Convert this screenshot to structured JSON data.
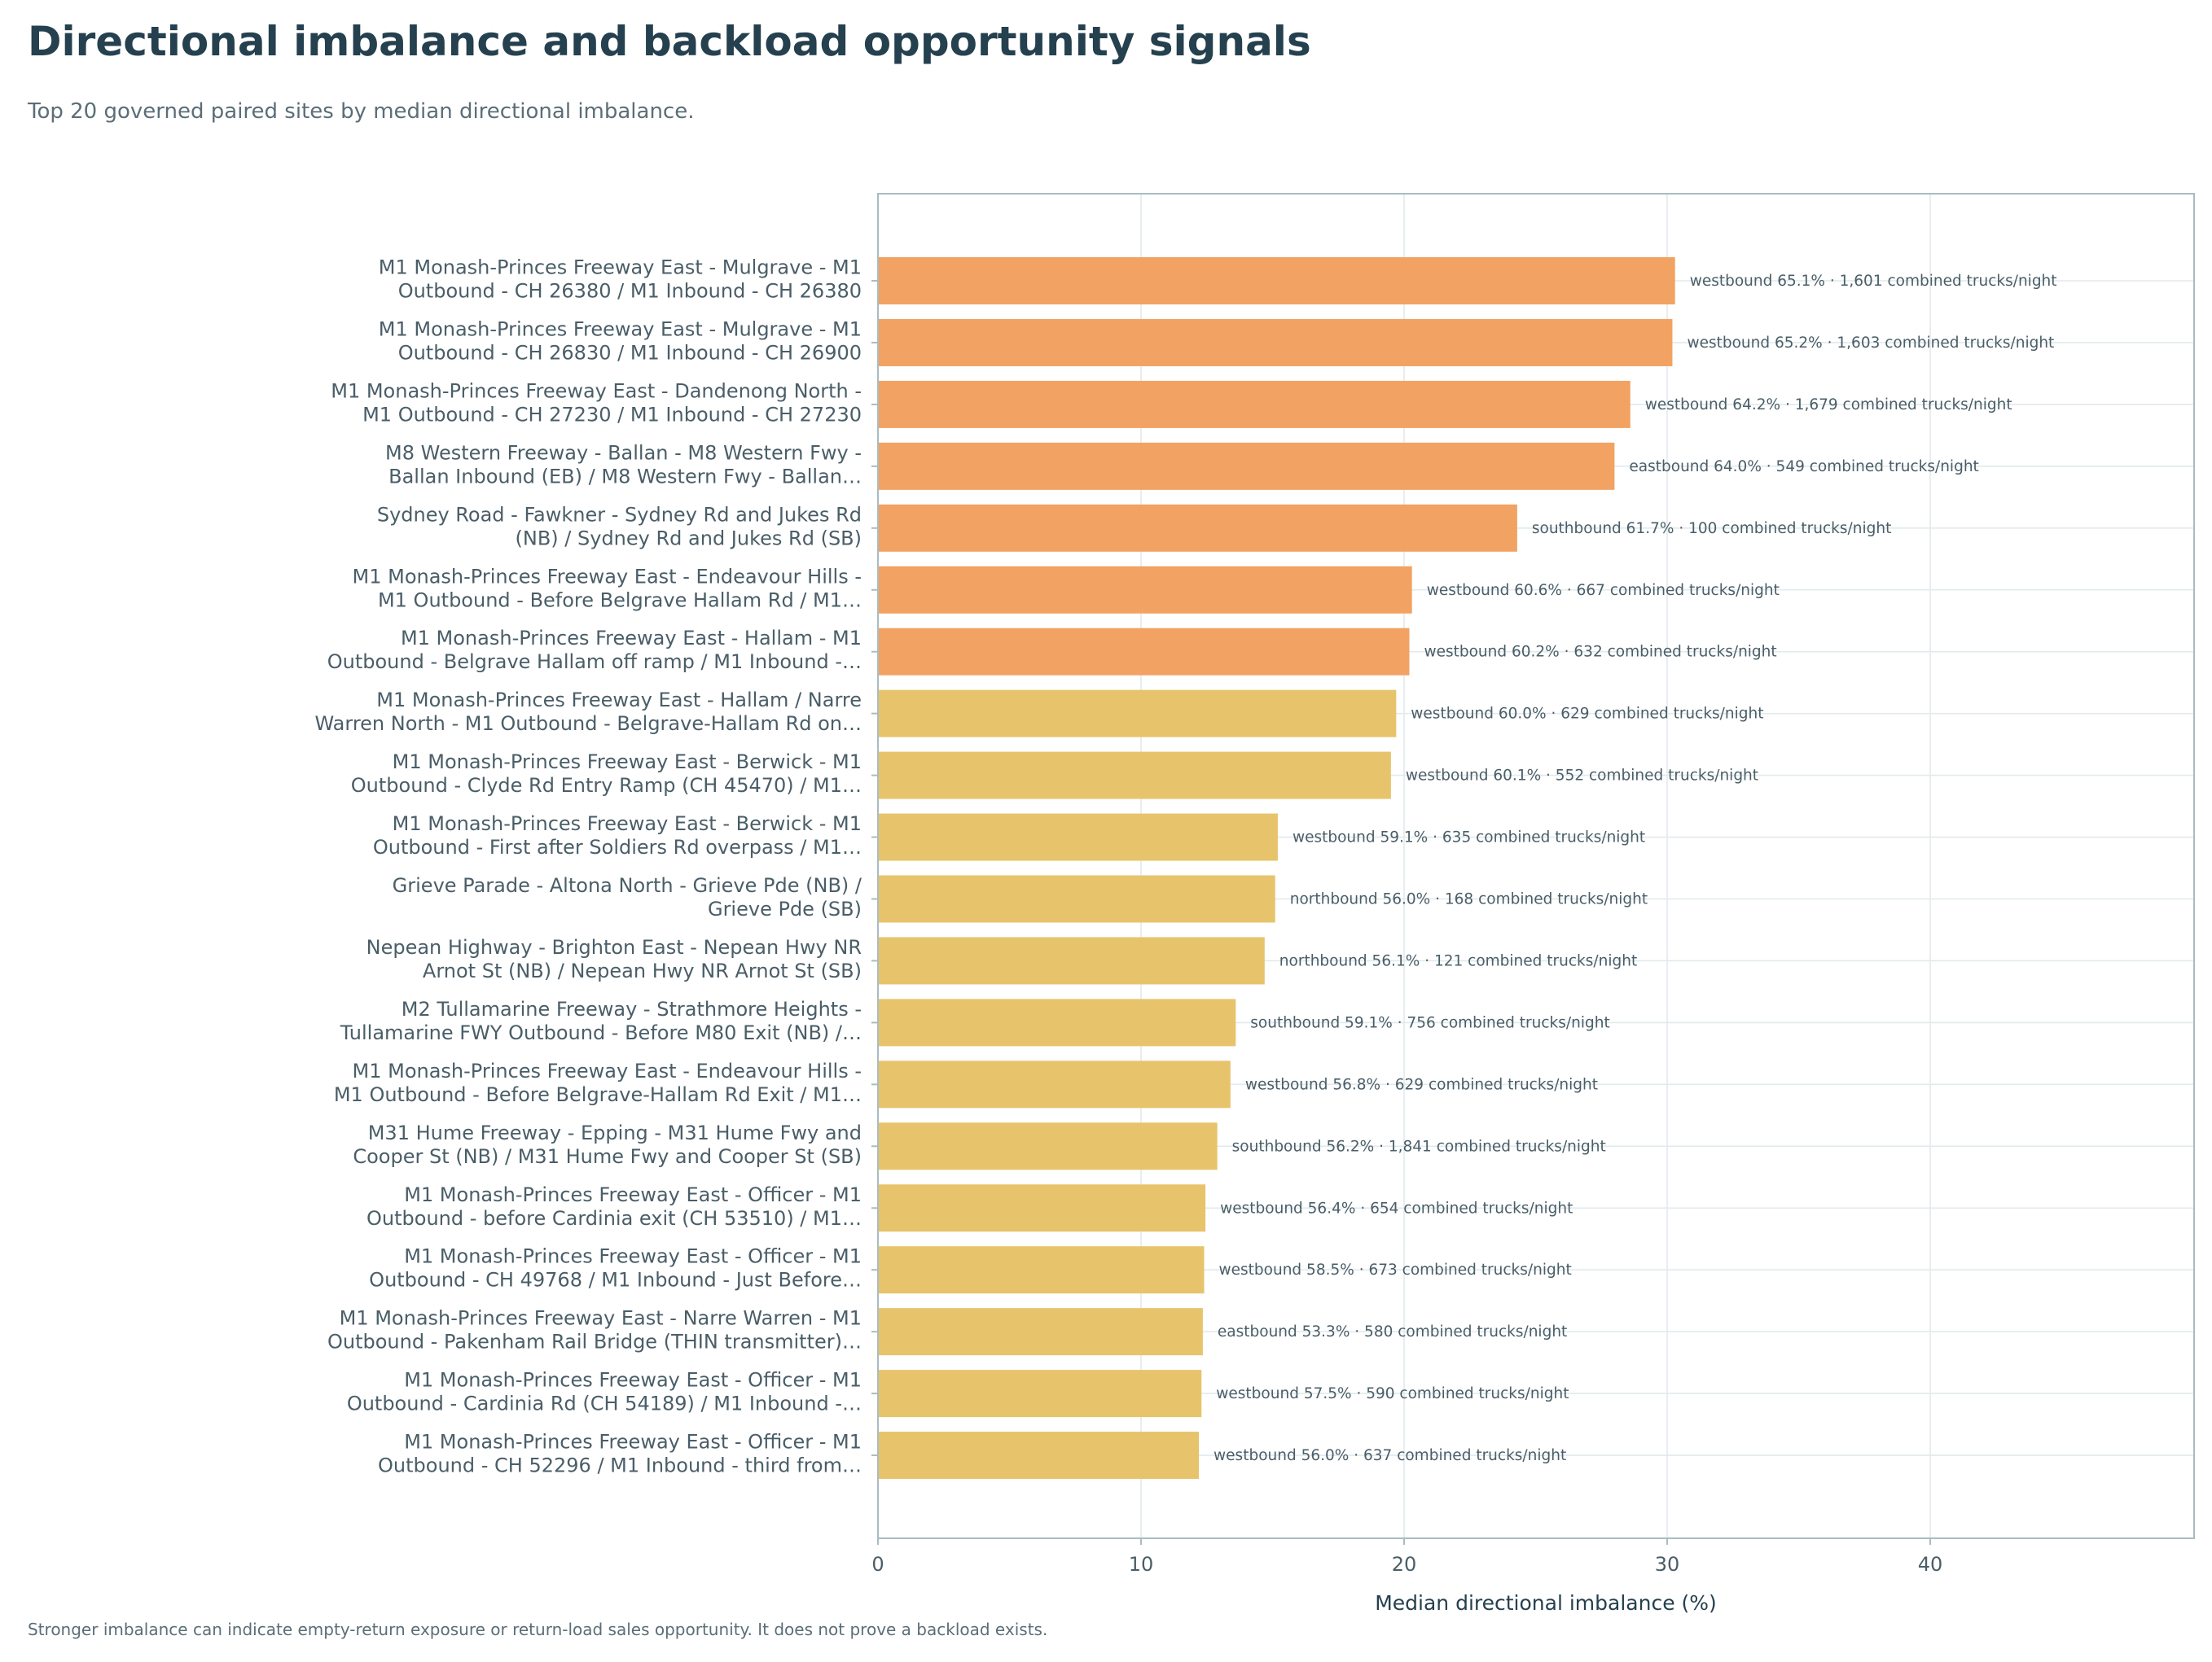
{
  "title": "Directional imbalance and backload opportunity signals",
  "subtitle": "Top 20 governed paired sites by median directional imbalance.",
  "footnote": "Stronger imbalance can indicate empty-return exposure or return-load sales opportunity. It does not prove a backload exists.",
  "colors": {
    "high": "#f2a262",
    "mid": "#e7c46b",
    "frame": "#a9bcc2",
    "grid": "#e2eaec",
    "text": "#4a5e68",
    "title": "#25404e"
  },
  "chart_data": {
    "type": "bar",
    "orientation": "horizontal",
    "xlabel": "Median directional imbalance (%)",
    "xlim": [
      0,
      50
    ],
    "xticks": [
      0,
      10,
      20,
      30,
      40
    ],
    "grid": true,
    "bars": [
      {
        "label": [
          "M1 Monash-Princes Freeway East - Mulgrave - M1",
          "Outbound - CH 26380 / M1 Inbound - CH 26380"
        ],
        "value": 30.3,
        "annotation": "westbound 65.1% · 1,601 combined trucks/night",
        "color_group": "high"
      },
      {
        "label": [
          "M1 Monash-Princes Freeway East - Mulgrave - M1",
          "Outbound - CH 26830 / M1 Inbound - CH 26900"
        ],
        "value": 30.2,
        "annotation": "westbound 65.2% · 1,603 combined trucks/night",
        "color_group": "high"
      },
      {
        "label": [
          "M1 Monash-Princes Freeway East - Dandenong North -",
          "M1 Outbound - CH 27230 / M1 Inbound - CH 27230"
        ],
        "value": 28.6,
        "annotation": "westbound 64.2% · 1,679 combined trucks/night",
        "color_group": "high"
      },
      {
        "label": [
          "M8 Western Freeway - Ballan - M8 Western Fwy -",
          "Ballan Inbound (EB) / M8 Western Fwy - Ballan…"
        ],
        "value": 28.0,
        "annotation": "eastbound 64.0% · 549 combined trucks/night",
        "color_group": "high"
      },
      {
        "label": [
          "Sydney Road - Fawkner - Sydney Rd and Jukes Rd",
          "(NB) / Sydney Rd and Jukes Rd (SB)"
        ],
        "value": 24.3,
        "annotation": "southbound 61.7% · 100 combined trucks/night",
        "color_group": "high"
      },
      {
        "label": [
          "M1 Monash-Princes Freeway East - Endeavour Hills -",
          "M1 Outbound - Before Belgrave Hallam Rd / M1…"
        ],
        "value": 20.3,
        "annotation": "westbound 60.6% · 667 combined trucks/night",
        "color_group": "high"
      },
      {
        "label": [
          "M1 Monash-Princes Freeway East - Hallam - M1",
          "Outbound - Belgrave Hallam off ramp / M1 Inbound -…"
        ],
        "value": 20.2,
        "annotation": "westbound 60.2% · 632 combined trucks/night",
        "color_group": "high"
      },
      {
        "label": [
          "M1 Monash-Princes Freeway East - Hallam / Narre",
          "Warren North - M1 Outbound - Belgrave-Hallam Rd on…"
        ],
        "value": 19.7,
        "annotation": "westbound 60.0% · 629 combined trucks/night",
        "color_group": "mid"
      },
      {
        "label": [
          "M1 Monash-Princes Freeway East - Berwick - M1",
          "Outbound - Clyde Rd Entry Ramp (CH 45470) / M1…"
        ],
        "value": 19.5,
        "annotation": "westbound 60.1% · 552 combined trucks/night",
        "color_group": "mid"
      },
      {
        "label": [
          "M1 Monash-Princes Freeway East - Berwick - M1",
          "Outbound - First after Soldiers Rd overpass / M1…"
        ],
        "value": 15.2,
        "annotation": "westbound 59.1% · 635 combined trucks/night",
        "color_group": "mid"
      },
      {
        "label": [
          "Grieve Parade - Altona North - Grieve Pde (NB) /",
          "Grieve Pde (SB)"
        ],
        "value": 15.1,
        "annotation": "northbound 56.0% · 168 combined trucks/night",
        "color_group": "mid"
      },
      {
        "label": [
          "Nepean Highway - Brighton East - Nepean Hwy NR",
          "Arnot St (NB) / Nepean Hwy NR Arnot St (SB)"
        ],
        "value": 14.7,
        "annotation": "northbound 56.1% · 121 combined trucks/night",
        "color_group": "mid"
      },
      {
        "label": [
          "M2 Tullamarine Freeway - Strathmore Heights -",
          "Tullamarine FWY Outbound - Before M80 Exit (NB) /…"
        ],
        "value": 13.6,
        "annotation": "southbound 59.1% · 756 combined trucks/night",
        "color_group": "mid"
      },
      {
        "label": [
          "M1 Monash-Princes Freeway East - Endeavour Hills -",
          "M1 Outbound - Before Belgrave-Hallam Rd Exit / M1…"
        ],
        "value": 13.4,
        "annotation": "westbound 56.8% · 629 combined trucks/night",
        "color_group": "mid"
      },
      {
        "label": [
          "M31 Hume Freeway - Epping - M31 Hume Fwy and",
          "Cooper St (NB) / M31 Hume Fwy and Cooper St (SB)"
        ],
        "value": 12.9,
        "annotation": "southbound 56.2% · 1,841 combined trucks/night",
        "color_group": "mid"
      },
      {
        "label": [
          "M1 Monash-Princes Freeway East - Officer - M1",
          "Outbound - before Cardinia exit (CH 53510) / M1…"
        ],
        "value": 12.45,
        "annotation": "westbound 56.4% · 654 combined trucks/night",
        "color_group": "mid"
      },
      {
        "label": [
          "M1 Monash-Princes Freeway East - Officer - M1",
          "Outbound - CH 49768 / M1 Inbound - Just Before…"
        ],
        "value": 12.4,
        "annotation": "westbound 58.5% · 673 combined trucks/night",
        "color_group": "mid"
      },
      {
        "label": [
          "M1 Monash-Princes Freeway East - Narre Warren - M1",
          "Outbound - Pakenham Rail Bridge (THIN transmitter)…"
        ],
        "value": 12.35,
        "annotation": "eastbound 53.3% · 580 combined trucks/night",
        "color_group": "mid"
      },
      {
        "label": [
          "M1 Monash-Princes Freeway East - Officer - M1",
          "Outbound - Cardinia Rd (CH 54189) / M1 Inbound -…"
        ],
        "value": 12.3,
        "annotation": "westbound 57.5% · 590 combined trucks/night",
        "color_group": "mid"
      },
      {
        "label": [
          "M1 Monash-Princes Freeway East - Officer - M1",
          "Outbound - CH 52296 / M1 Inbound - third from…"
        ],
        "value": 12.2,
        "annotation": "westbound 56.0% · 637 combined trucks/night",
        "color_group": "mid"
      }
    ]
  }
}
